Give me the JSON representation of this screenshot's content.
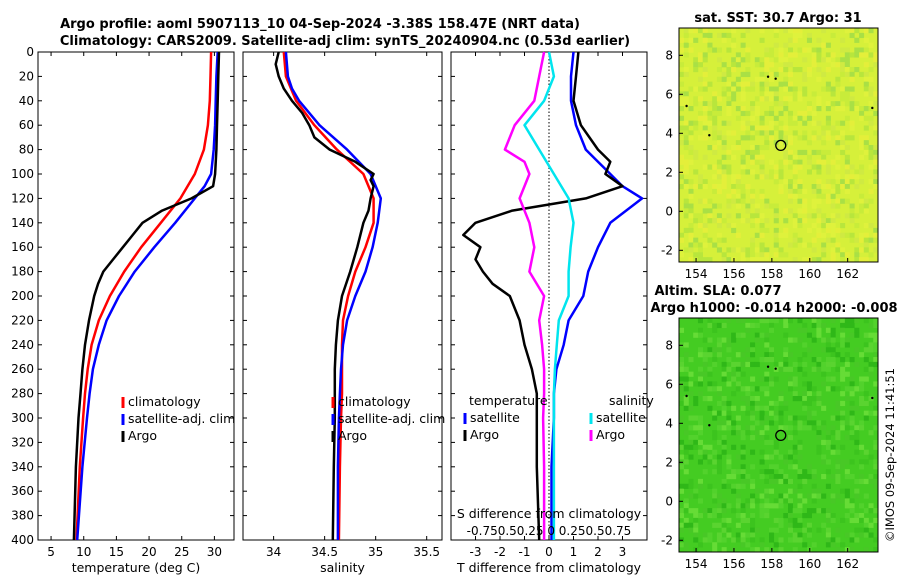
{
  "figure": {
    "title_line1": "Argo profile: aoml 5907113_10 04-Sep-2024 -3.38S 158.47E (NRT data)",
    "title_line2": "Climatology: CARS2009. Satellite-adj clim: synTS_20240904.nc (0.53d earlier)",
    "stamp": "©IMOS 09-Sep-2024 11:41:51"
  },
  "colors": {
    "climatology": "#ff0000",
    "satellite": "#0000ff",
    "argo": "#000000",
    "sal_satellite": "#00e5ee",
    "sal_argo": "#ff00ff",
    "sst_bg": "#d6f03a",
    "sla_bg": "#44cc22"
  },
  "chart_data": [
    {
      "id": "temperature",
      "type": "line",
      "xlabel": "temperature (deg C)",
      "ylabel": "",
      "xlim": [
        3,
        33
      ],
      "ylim": [
        400,
        0
      ],
      "xticks": [
        5,
        10,
        15,
        20,
        25,
        30
      ],
      "yticks": [
        0,
        20,
        40,
        60,
        80,
        100,
        120,
        140,
        160,
        180,
        200,
        220,
        240,
        260,
        280,
        300,
        320,
        340,
        360,
        380,
        400
      ],
      "legend": [
        "climatology",
        "satellite-adj. clim",
        "Argo"
      ],
      "series": [
        {
          "name": "climatology",
          "color_key": "climatology",
          "depth": [
            0,
            20,
            40,
            60,
            80,
            100,
            120,
            140,
            160,
            180,
            200,
            220,
            240,
            260,
            280,
            300,
            340,
            400
          ],
          "values": [
            29.5,
            29.4,
            29.3,
            29.0,
            28.4,
            27.0,
            24.8,
            21.8,
            18.8,
            16.2,
            14.0,
            12.3,
            11.2,
            10.6,
            10.2,
            9.9,
            9.4,
            8.9
          ]
        },
        {
          "name": "satellite-adj. clim",
          "color_key": "satellite",
          "depth": [
            0,
            20,
            40,
            60,
            80,
            100,
            110,
            120,
            140,
            160,
            180,
            200,
            220,
            240,
            260,
            280,
            300,
            340,
            400
          ],
          "values": [
            30.5,
            30.3,
            30.2,
            30.1,
            29.9,
            29.5,
            28.5,
            27.0,
            24.0,
            20.8,
            17.8,
            15.4,
            13.5,
            12.3,
            11.4,
            10.9,
            10.5,
            9.8,
            9.0
          ]
        },
        {
          "name": "Argo",
          "color_key": "argo",
          "depth": [
            0,
            20,
            40,
            60,
            80,
            100,
            110,
            120,
            130,
            140,
            150,
            160,
            170,
            180,
            190,
            200,
            220,
            240,
            260,
            280,
            300,
            340,
            400
          ],
          "values": [
            30.7,
            30.6,
            30.5,
            30.4,
            30.3,
            30.1,
            29.8,
            26.5,
            22.0,
            19.0,
            17.5,
            16.0,
            14.5,
            13.0,
            12.2,
            11.6,
            10.8,
            10.2,
            9.8,
            9.5,
            9.2,
            8.8,
            8.5
          ]
        }
      ]
    },
    {
      "id": "salinity",
      "type": "line",
      "xlabel": "salinity",
      "ylabel": "",
      "xlim": [
        33.7,
        35.65
      ],
      "ylim": [
        400,
        0
      ],
      "xticks": [
        34,
        34.5,
        35,
        35.5
      ],
      "legend": [
        "climatology",
        "satellite-adj. clim",
        "Argo"
      ],
      "series": [
        {
          "name": "climatology",
          "color_key": "climatology",
          "depth": [
            0,
            20,
            40,
            60,
            80,
            100,
            120,
            140,
            160,
            180,
            200,
            220,
            240,
            260,
            280,
            300,
            340,
            400
          ],
          "values": [
            34.1,
            34.12,
            34.22,
            34.4,
            34.62,
            34.88,
            34.98,
            34.98,
            34.9,
            34.8,
            34.73,
            34.68,
            34.67,
            34.67,
            34.67,
            34.66,
            34.65,
            34.64
          ]
        },
        {
          "name": "satellite-adj. clim",
          "color_key": "satellite",
          "depth": [
            0,
            20,
            30,
            40,
            60,
            80,
            100,
            120,
            140,
            160,
            180,
            200,
            220,
            240,
            260,
            280,
            300,
            340,
            400
          ],
          "values": [
            34.12,
            34.14,
            34.18,
            34.25,
            34.45,
            34.72,
            34.95,
            35.05,
            35.02,
            34.97,
            34.9,
            34.8,
            34.72,
            34.68,
            34.66,
            34.65,
            34.64,
            34.63,
            34.63
          ]
        },
        {
          "name": "Argo",
          "color_key": "argo",
          "depth": [
            0,
            10,
            20,
            30,
            40,
            50,
            60,
            70,
            80,
            90,
            100,
            105,
            110,
            120,
            130,
            140,
            160,
            180,
            200,
            220,
            240,
            260,
            280,
            300,
            340,
            400
          ],
          "values": [
            34.05,
            34.02,
            34.05,
            34.1,
            34.18,
            34.28,
            34.35,
            34.4,
            34.55,
            34.8,
            34.98,
            34.95,
            34.98,
            34.95,
            34.93,
            34.88,
            34.82,
            34.75,
            34.67,
            34.63,
            34.61,
            34.6,
            34.6,
            34.6,
            34.59,
            34.58
          ]
        }
      ]
    },
    {
      "id": "difference",
      "type": "line",
      "xlabel": "T difference from climatology",
      "ylabel": "",
      "xlim": [
        -4,
        4
      ],
      "ylim": [
        400,
        0
      ],
      "xticks": [
        -3,
        -2,
        -1,
        0,
        1,
        2,
        3
      ],
      "top_label": "S difference from climatology",
      "top_ticks": "-0.750.50.25 0 0.250.50.75",
      "legend_titles": [
        "temperature",
        "salinity"
      ],
      "legend": [
        "satellite",
        "Argo",
        "satellite",
        "Argo"
      ],
      "series": [
        {
          "name": "T satellite",
          "color_key": "satellite",
          "depth": [
            0,
            20,
            40,
            60,
            80,
            100,
            110,
            120,
            140,
            160,
            180,
            200,
            220,
            240,
            260,
            280,
            300,
            340,
            400
          ],
          "values": [
            1.0,
            0.9,
            0.9,
            1.1,
            1.5,
            2.5,
            3.0,
            3.8,
            2.5,
            2.0,
            1.6,
            1.4,
            0.8,
            0.6,
            0.3,
            0.2,
            0.2,
            0.1,
            0.1
          ]
        },
        {
          "name": "T Argo",
          "color_key": "argo",
          "depth": [
            0,
            20,
            40,
            60,
            80,
            90,
            100,
            110,
            120,
            130,
            140,
            150,
            160,
            170,
            180,
            190,
            200,
            220,
            240,
            260,
            280,
            300,
            340,
            400
          ],
          "values": [
            1.2,
            1.1,
            1.0,
            1.3,
            2.0,
            2.5,
            2.3,
            3.0,
            1.5,
            -1.5,
            -3.0,
            -3.5,
            -2.8,
            -3.0,
            -2.7,
            -2.3,
            -1.6,
            -1.2,
            -1.0,
            -0.7,
            -0.5,
            -0.5,
            -0.5,
            -0.4
          ]
        },
        {
          "name": "S satellite",
          "color_key": "sal_satellite",
          "depth": [
            0,
            20,
            40,
            60,
            80,
            100,
            120,
            140,
            160,
            180,
            200,
            220,
            240,
            260,
            280,
            300,
            340,
            400
          ],
          "values": [
            0.0,
            0.05,
            -0.05,
            -0.25,
            -0.1,
            0.05,
            0.2,
            0.25,
            0.22,
            0.2,
            0.2,
            0.1,
            0.08,
            0.06,
            0.05,
            0.05,
            0.05,
            0.05
          ]
        },
        {
          "name": "S Argo",
          "color_key": "sal_argo",
          "depth": [
            0,
            20,
            40,
            60,
            80,
            90,
            100,
            120,
            140,
            160,
            180,
            200,
            220,
            240,
            260,
            280,
            300,
            340,
            400
          ],
          "values": [
            -0.05,
            -0.1,
            -0.15,
            -0.35,
            -0.45,
            -0.25,
            -0.2,
            -0.3,
            -0.2,
            -0.15,
            -0.2,
            -0.05,
            -0.1,
            -0.07,
            -0.05,
            -0.05,
            -0.06,
            -0.05,
            -0.05
          ]
        }
      ]
    },
    {
      "id": "sst_map",
      "type": "heatmap",
      "title": "sat. SST: 30.7 Argo: 31",
      "xlim": [
        153.1,
        163.6
      ],
      "ylim": [
        -2.6,
        9.4
      ],
      "xticks": [
        154,
        156,
        158,
        160,
        162
      ],
      "yticks": [
        -2,
        0,
        2,
        4,
        6,
        8
      ],
      "marker": {
        "lon": 158.47,
        "lat": 3.38
      }
    },
    {
      "id": "sla_map",
      "type": "heatmap",
      "title": "Altim. SLA: 0.077",
      "subtitle": "Argo h1000: -0.014 h2000: -0.008",
      "xlim": [
        153.1,
        163.6
      ],
      "ylim": [
        -2.6,
        9.4
      ],
      "xticks": [
        154,
        156,
        158,
        160,
        162
      ],
      "yticks": [
        -2,
        0,
        2,
        4,
        6,
        8
      ],
      "marker": {
        "lon": 158.47,
        "lat": 3.38
      }
    }
  ]
}
